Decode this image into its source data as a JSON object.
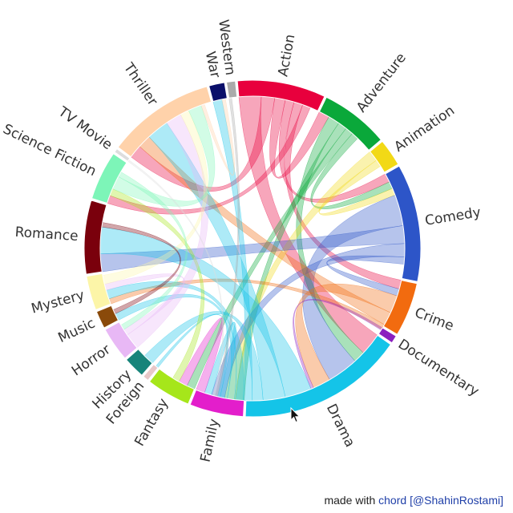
{
  "credit": {
    "prefix": "made with",
    "link_text": "chord",
    "author": "[@ShahinRostami]"
  },
  "groups": [
    {
      "name": "Action",
      "color": "#e8003d",
      "value": 9
    },
    {
      "name": "Adventure",
      "color": "#0aa83a",
      "value": 7
    },
    {
      "name": "Animation",
      "color": "#f2d916",
      "value": 2.8
    },
    {
      "name": "Comedy",
      "color": "#2d55c8",
      "value": 12
    },
    {
      "name": "Crime",
      "color": "#f26b0f",
      "value": 5.5
    },
    {
      "name": "Documentary",
      "color": "#8b1fbf",
      "value": 0.8
    },
    {
      "name": "Drama",
      "color": "#14c4e8",
      "value": 17
    },
    {
      "name": "Family",
      "color": "#e31ecb",
      "value": 5.5
    },
    {
      "name": "Fantasy",
      "color": "#a6e61a",
      "value": 4.5
    },
    {
      "name": "Foreign",
      "color": "#e8c8c8",
      "value": 0.6
    },
    {
      "name": "History",
      "color": "#17847a",
      "value": 2.2
    },
    {
      "name": "Horror",
      "color": "#e8b8f5",
      "value": 3.5
    },
    {
      "name": "Music",
      "color": "#8a4a0a",
      "value": 1.8
    },
    {
      "name": "Mystery",
      "color": "#fcf5a8",
      "value": 3.5
    },
    {
      "name": "Romance",
      "color": "#7a000c",
      "value": 7.5
    },
    {
      "name": "Science Fiction",
      "color": "#7df5b8",
      "value": 5
    },
    {
      "name": "TV Movie",
      "color": "#dddddd",
      "value": 0.4
    },
    {
      "name": "Thriller",
      "color": "#ffd2aa",
      "value": 11
    },
    {
      "name": "War",
      "color": "#0a0f6a",
      "value": 1.6
    },
    {
      "name": "Western",
      "color": "#aaaaaa",
      "value": 0.9
    }
  ],
  "chords": [
    {
      "source": "Action",
      "target": "Drama",
      "value": 2.5
    },
    {
      "source": "Action",
      "target": "Thriller",
      "value": 1.5
    },
    {
      "source": "Action",
      "target": "Adventure",
      "value": 1.2
    },
    {
      "source": "Action",
      "target": "Comedy",
      "value": 1.0
    },
    {
      "source": "Action",
      "target": "Crime",
      "value": 1.0
    },
    {
      "source": "Action",
      "target": "Science Fiction",
      "value": 0.9
    },
    {
      "source": "Adventure",
      "target": "Drama",
      "value": 1.3
    },
    {
      "source": "Adventure",
      "target": "Family",
      "value": 1.0
    },
    {
      "source": "Adventure",
      "target": "Fantasy",
      "value": 0.9
    },
    {
      "source": "Adventure",
      "target": "Comedy",
      "value": 0.8
    },
    {
      "source": "Animation",
      "target": "Family",
      "value": 1.2
    },
    {
      "source": "Animation",
      "target": "Comedy",
      "value": 0.8
    },
    {
      "source": "Comedy",
      "target": "Drama",
      "value": 3.5
    },
    {
      "source": "Comedy",
      "target": "Romance",
      "value": 2.0
    },
    {
      "source": "Comedy",
      "target": "Family",
      "value": 1.5
    },
    {
      "source": "Comedy",
      "target": "Crime",
      "value": 0.8
    },
    {
      "source": "Crime",
      "target": "Drama",
      "value": 2.0
    },
    {
      "source": "Crime",
      "target": "Thriller",
      "value": 1.5
    },
    {
      "source": "Crime",
      "target": "Mystery",
      "value": 0.6
    },
    {
      "source": "Documentary",
      "target": "Drama",
      "value": 0.3
    },
    {
      "source": "Drama",
      "target": "Romance",
      "value": 3.0
    },
    {
      "source": "Drama",
      "target": "Thriller",
      "value": 2.5
    },
    {
      "source": "Drama",
      "target": "History",
      "value": 1.2
    },
    {
      "source": "Drama",
      "target": "War",
      "value": 1.0
    },
    {
      "source": "Drama",
      "target": "Mystery",
      "value": 1.0
    },
    {
      "source": "Drama",
      "target": "Music",
      "value": 0.8
    },
    {
      "source": "Drama",
      "target": "Family",
      "value": 0.8
    },
    {
      "source": "Drama",
      "target": "Foreign",
      "value": 0.3
    },
    {
      "source": "Family",
      "target": "Fantasy",
      "value": 1.0
    },
    {
      "source": "Fantasy",
      "target": "Science Fiction",
      "value": 0.8
    },
    {
      "source": "Horror",
      "target": "Thriller",
      "value": 1.8
    },
    {
      "source": "Horror",
      "target": "Mystery",
      "value": 0.7
    },
    {
      "source": "Mystery",
      "target": "Thriller",
      "value": 1.0
    },
    {
      "source": "Romance",
      "target": "Music",
      "value": 0.5
    },
    {
      "source": "Science Fiction",
      "target": "Thriller",
      "value": 1.5
    },
    {
      "source": "Science Fiction",
      "target": "Horror",
      "value": 0.6
    },
    {
      "source": "Thriller",
      "target": "War",
      "value": 0.4
    },
    {
      "source": "Western",
      "target": "Drama",
      "value": 0.3
    },
    {
      "source": "TV Movie",
      "target": "Drama",
      "value": 0.2
    }
  ]
}
